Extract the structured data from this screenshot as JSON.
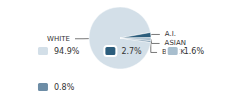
{
  "chart_data": {
    "type": "pie",
    "categories": [
      "WHITE",
      "A.I.",
      "ASIAN",
      "BLACK"
    ],
    "values": [
      94.9,
      2.7,
      1.6,
      0.8
    ],
    "value_labels": [
      "94.9%",
      "2.7%",
      "1.6%",
      "0.8%"
    ],
    "colors": [
      "#d3dfe8",
      "#2c5d7c",
      "#a8bece",
      "#6d8da6"
    ],
    "legend": "bottom"
  }
}
